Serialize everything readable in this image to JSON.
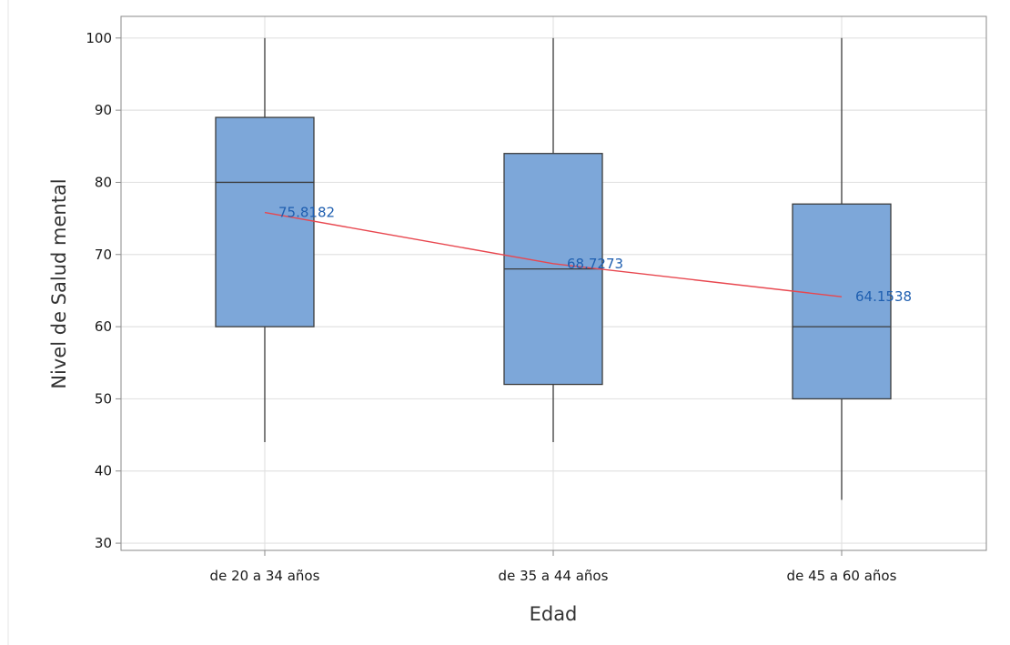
{
  "chart_data": {
    "type": "boxplot",
    "title": "",
    "xlabel": "Edad",
    "ylabel": "Nivel de Salud mental",
    "ylim": [
      29,
      103
    ],
    "yticks": [
      "30",
      "40",
      "50",
      "60",
      "70",
      "80",
      "90",
      "100"
    ],
    "grid": true,
    "categories": [
      "de 20 a 34 años",
      "de 35 a 44 años",
      "de 45 a 60 años"
    ],
    "boxes": [
      {
        "min": 44,
        "q1": 60,
        "median": 80,
        "q3": 89,
        "max": 100
      },
      {
        "min": 44,
        "q1": 52,
        "median": 68,
        "q3": 84,
        "max": 100
      },
      {
        "min": 36,
        "q1": 50,
        "median": 60,
        "q3": 77,
        "max": 100
      }
    ],
    "means": [
      75.8182,
      68.7273,
      64.1538
    ],
    "mean_labels": [
      "75.8182",
      "68.7273",
      "64.1538"
    ],
    "colors": {
      "box_fill": "#7da7d9",
      "box_stroke": "#3c3c3c",
      "mean_line": "#e8474f",
      "mean_label": "#1f5fb0",
      "grid": "#e2e2e2",
      "frame": "#8a8a8a"
    }
  }
}
